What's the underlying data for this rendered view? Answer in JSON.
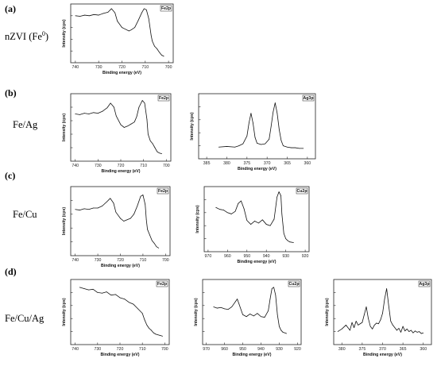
{
  "labels": {
    "panel_a": "(a)",
    "panel_b": "(b)",
    "panel_c": "(c)",
    "panel_d": "(d)",
    "sample_a_main": "nZVI (Fe",
    "sample_a_sup": "0",
    "sample_a_close": ")",
    "sample_b": "Fe/Ag",
    "sample_c": "Fe/Cu",
    "sample_d": "Fe/Cu/Ag"
  },
  "colors": {
    "line": "#111111",
    "frame": "#222222",
    "background": "#ffffff"
  },
  "chart_data": [
    {
      "id": "a-fe",
      "type": "line",
      "legend": "Fe2p",
      "xlabel": "Binding energy (eV)",
      "ylabel": "Intensity (cps)",
      "xlim": [
        742,
        698
      ],
      "xticks": [
        740,
        730,
        720,
        710,
        700
      ],
      "ylim": [
        0,
        1
      ],
      "x": [
        740,
        738,
        736,
        734,
        732,
        730,
        728,
        726,
        724.5,
        723,
        722,
        720,
        718.5,
        717,
        716,
        714.5,
        713,
        711.5,
        710.5,
        709.5,
        708.5,
        707.5,
        707,
        706,
        705,
        704,
        703,
        702
      ],
      "y": [
        0.8,
        0.79,
        0.81,
        0.8,
        0.82,
        0.81,
        0.84,
        0.86,
        0.92,
        0.85,
        0.71,
        0.6,
        0.57,
        0.54,
        0.56,
        0.6,
        0.72,
        0.85,
        0.92,
        0.9,
        0.75,
        0.47,
        0.37,
        0.28,
        0.24,
        0.18,
        0.13,
        0.11
      ]
    },
    {
      "id": "b-fe",
      "type": "line",
      "legend": "Fe2p",
      "xlabel": "Binding energy (eV)",
      "ylabel": "Intensity (cps)",
      "xlim": [
        742,
        698
      ],
      "xticks": [
        740,
        730,
        720,
        710,
        700
      ],
      "ylim": [
        0,
        1
      ],
      "x": [
        740,
        738,
        736,
        734,
        732,
        730,
        728,
        726,
        724.5,
        723,
        722,
        720,
        718.5,
        717,
        715.5,
        714,
        713,
        712,
        710.5,
        709.5,
        708.5,
        708,
        707,
        706,
        705,
        704,
        703,
        702
      ],
      "y": [
        0.7,
        0.69,
        0.71,
        0.7,
        0.72,
        0.71,
        0.74,
        0.79,
        0.86,
        0.8,
        0.67,
        0.54,
        0.5,
        0.52,
        0.55,
        0.58,
        0.66,
        0.8,
        0.9,
        0.86,
        0.62,
        0.4,
        0.3,
        0.26,
        0.2,
        0.14,
        0.12,
        0.11
      ]
    },
    {
      "id": "b-ag",
      "type": "line",
      "legend": "Ag3p",
      "xlabel": "Binding energy (eV)",
      "ylabel": "Intensity (cps)",
      "xlim": [
        387,
        358
      ],
      "xticks": [
        385,
        380,
        375,
        370,
        365,
        360
      ],
      "ylim": [
        0,
        1
      ],
      "x": [
        382,
        380,
        378,
        377,
        376,
        375,
        374.5,
        374,
        373.5,
        373,
        372.5,
        371.5,
        370.5,
        369.5,
        369,
        368.5,
        368,
        367.5,
        367,
        366.5,
        366,
        365,
        364,
        363,
        362,
        361
      ],
      "y": [
        0.18,
        0.19,
        0.18,
        0.2,
        0.23,
        0.35,
        0.55,
        0.7,
        0.55,
        0.33,
        0.24,
        0.22,
        0.23,
        0.3,
        0.5,
        0.72,
        0.86,
        0.7,
        0.45,
        0.28,
        0.2,
        0.18,
        0.17,
        0.17,
        0.16,
        0.16
      ]
    },
    {
      "id": "c-fe",
      "type": "line",
      "legend": "Fe2p",
      "xlabel": "Binding energy (eV)",
      "ylabel": "Intensity (cps)",
      "xlim": [
        742,
        698
      ],
      "xticks": [
        740,
        730,
        720,
        710,
        700
      ],
      "ylim": [
        0,
        1
      ],
      "x": [
        740,
        738,
        736,
        734,
        732,
        730,
        728,
        726,
        724.5,
        723,
        722,
        720,
        718.5,
        717,
        715.5,
        714,
        712.5,
        711,
        710,
        709,
        708.5,
        708,
        707,
        706,
        705,
        704,
        703
      ],
      "y": [
        0.67,
        0.66,
        0.68,
        0.67,
        0.69,
        0.69,
        0.72,
        0.78,
        0.83,
        0.76,
        0.63,
        0.54,
        0.5,
        0.52,
        0.54,
        0.6,
        0.72,
        0.86,
        0.88,
        0.74,
        0.52,
        0.38,
        0.3,
        0.22,
        0.18,
        0.13,
        0.11
      ]
    },
    {
      "id": "c-cu",
      "type": "line",
      "legend": "Cu2p",
      "xlabel": "Binding energy (eV)",
      "ylabel": "Intensity (cps)",
      "xlim": [
        972,
        918
      ],
      "xticks": [
        970,
        960,
        950,
        940,
        930,
        920
      ],
      "ylim": [
        0,
        1
      ],
      "x": [
        966,
        964,
        962,
        960,
        958,
        956,
        954.5,
        953,
        951.5,
        950,
        948,
        946,
        944,
        942,
        940,
        938,
        936,
        934.5,
        933.5,
        932.5,
        932,
        931,
        930,
        929,
        928,
        926
      ],
      "y": [
        0.68,
        0.65,
        0.64,
        0.6,
        0.58,
        0.62,
        0.74,
        0.78,
        0.66,
        0.48,
        0.42,
        0.47,
        0.44,
        0.49,
        0.42,
        0.4,
        0.5,
        0.84,
        0.92,
        0.86,
        0.58,
        0.28,
        0.2,
        0.17,
        0.15,
        0.14
      ]
    },
    {
      "id": "d-fe",
      "type": "line",
      "legend": "Fe2p",
      "xlabel": "Binding energy (eV)",
      "ylabel": "Intensity (cps)",
      "xlim": [
        742,
        698
      ],
      "xticks": [
        740,
        730,
        720,
        710,
        700
      ],
      "ylim": [
        0,
        1
      ],
      "x": [
        738,
        736,
        734,
        732,
        730,
        728,
        726,
        724,
        722,
        720,
        718,
        716,
        714,
        712,
        710,
        709,
        708,
        707,
        706,
        705,
        704,
        703,
        702,
        701
      ],
      "y": [
        0.88,
        0.86,
        0.84,
        0.85,
        0.8,
        0.79,
        0.81,
        0.76,
        0.77,
        0.72,
        0.7,
        0.65,
        0.62,
        0.55,
        0.48,
        0.38,
        0.3,
        0.25,
        0.22,
        0.18,
        0.16,
        0.15,
        0.14,
        0.13
      ]
    },
    {
      "id": "d-cu",
      "type": "line",
      "legend": "Cu2p",
      "xlabel": "Binding energy (eV)",
      "ylabel": "Intensity (cps)",
      "xlim": [
        972,
        918
      ],
      "xticks": [
        970,
        960,
        950,
        940,
        930,
        920
      ],
      "ylim": [
        0,
        1
      ],
      "x": [
        966,
        964,
        962,
        960,
        958,
        956,
        954,
        953,
        952,
        950,
        948,
        946,
        944,
        942,
        940,
        938,
        936,
        935,
        934,
        933,
        932,
        931,
        930,
        929,
        928,
        926
      ],
      "y": [
        0.58,
        0.56,
        0.57,
        0.55,
        0.54,
        0.58,
        0.66,
        0.7,
        0.62,
        0.46,
        0.43,
        0.47,
        0.44,
        0.48,
        0.43,
        0.42,
        0.52,
        0.7,
        0.86,
        0.88,
        0.76,
        0.46,
        0.28,
        0.22,
        0.19,
        0.17
      ]
    },
    {
      "id": "d-ag",
      "type": "line",
      "legend": "Ag3p",
      "xlabel": "Binding energy (eV)",
      "ylabel": "Intensity (cps)",
      "xlim": [
        382,
        358
      ],
      "xticks": [
        380,
        375,
        370,
        365,
        360
      ],
      "ylim": [
        0,
        1
      ],
      "x": [
        381,
        380,
        379,
        378,
        377.5,
        377,
        376.5,
        376,
        375.5,
        375,
        374.5,
        374,
        373.5,
        373,
        372.5,
        372,
        371.5,
        371,
        370.5,
        370,
        369.5,
        369,
        368.5,
        368,
        367.5,
        367,
        366.5,
        366,
        365.5,
        365,
        364.5,
        364,
        363.5,
        363,
        362.5,
        362,
        361.5,
        361,
        360.5,
        360
      ],
      "y": [
        0.2,
        0.24,
        0.3,
        0.22,
        0.34,
        0.26,
        0.36,
        0.3,
        0.32,
        0.34,
        0.46,
        0.58,
        0.4,
        0.28,
        0.24,
        0.3,
        0.33,
        0.32,
        0.38,
        0.48,
        0.7,
        0.86,
        0.6,
        0.36,
        0.3,
        0.26,
        0.22,
        0.25,
        0.19,
        0.28,
        0.21,
        0.24,
        0.2,
        0.22,
        0.18,
        0.21,
        0.19,
        0.2,
        0.17,
        0.18
      ]
    }
  ]
}
